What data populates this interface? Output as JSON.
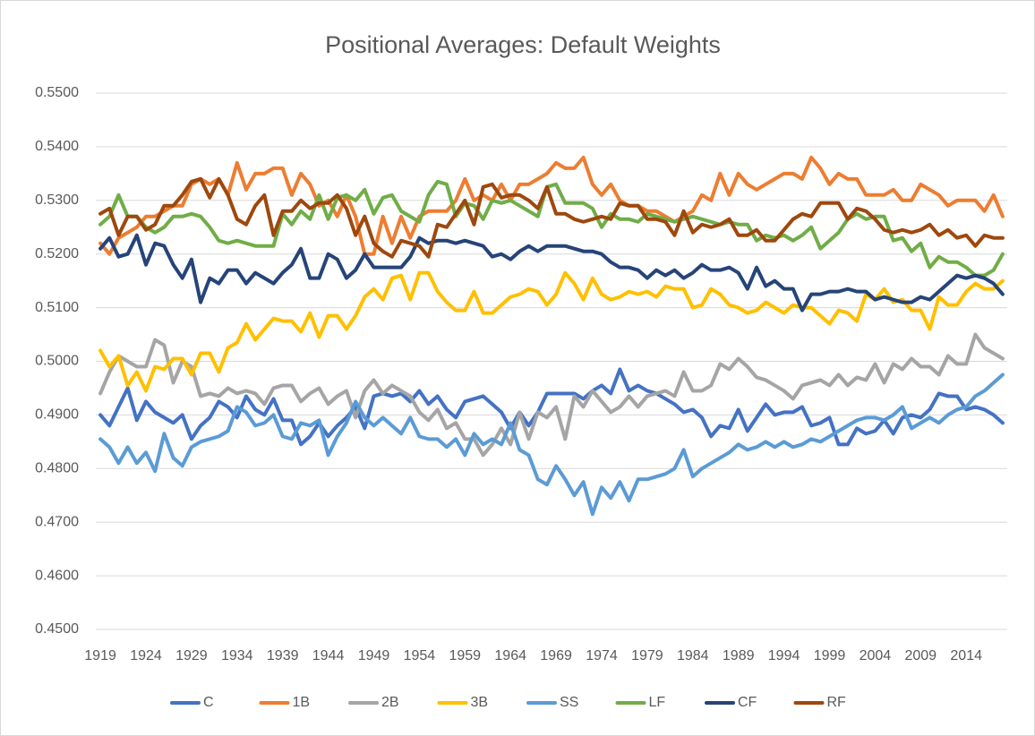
{
  "chart_data": {
    "type": "line",
    "title": "Positional Averages: Default Weights",
    "categories": [
      "1919",
      null,
      null,
      null,
      null,
      "1924",
      null,
      null,
      null,
      null,
      "1929",
      null,
      null,
      null,
      null,
      "1934",
      null,
      null,
      null,
      null,
      "1939",
      null,
      null,
      null,
      null,
      "1944",
      null,
      null,
      null,
      null,
      "1949",
      null,
      null,
      null,
      null,
      "1954",
      null,
      null,
      null,
      null,
      "1959",
      null,
      null,
      null,
      null,
      "1964",
      null,
      null,
      null,
      null,
      "1969",
      null,
      null,
      null,
      null,
      "1974",
      null,
      null,
      null,
      null,
      "1979",
      null,
      null,
      null,
      null,
      "1984",
      null,
      null,
      null,
      null,
      "1989",
      null,
      null,
      null,
      null,
      "1994",
      null,
      null,
      null,
      null,
      "1999",
      null,
      null,
      null,
      null,
      "2004",
      null,
      null,
      null,
      null,
      "2009",
      null,
      null,
      null,
      null,
      "2014",
      null,
      null,
      null,
      null
    ],
    "ylim": [
      0.45,
      0.55
    ],
    "yticks": [
      {
        "value": 0.45,
        "label": "0.4500"
      },
      {
        "value": 0.46,
        "label": "0.4600"
      },
      {
        "value": 0.47,
        "label": "0.4700"
      },
      {
        "value": 0.48,
        "label": "0.4800"
      },
      {
        "value": 0.49,
        "label": "0.4900"
      },
      {
        "value": 0.5,
        "label": "0.5000"
      },
      {
        "value": 0.51,
        "label": "0.5100"
      },
      {
        "value": 0.52,
        "label": "0.5200"
      },
      {
        "value": 0.53,
        "label": "0.5300"
      },
      {
        "value": 0.54,
        "label": "0.5400"
      },
      {
        "value": 0.55,
        "label": "0.5500"
      }
    ],
    "grid": true,
    "legend": "bottom",
    "series": [
      {
        "name": "C",
        "color": "#4472C4",
        "values": [
          0.49,
          0.488,
          0.4915,
          0.495,
          0.489,
          0.4925,
          0.4905,
          0.4895,
          0.4885,
          0.49,
          0.4855,
          0.488,
          0.4895,
          0.4925,
          0.4915,
          0.4895,
          0.4935,
          0.491,
          0.49,
          0.493,
          0.489,
          0.489,
          0.4845,
          0.486,
          0.4885,
          0.486,
          0.488,
          0.4895,
          0.4915,
          0.4875,
          0.4935,
          0.494,
          0.4935,
          0.494,
          0.4925,
          0.4945,
          0.492,
          0.4935,
          0.491,
          0.4895,
          0.4925,
          0.493,
          0.4935,
          0.492,
          0.4905,
          0.4875,
          0.4905,
          0.488,
          0.4905,
          0.494,
          0.494,
          0.494,
          0.494,
          0.493,
          0.4945,
          0.4955,
          0.494,
          0.4985,
          0.4945,
          0.4955,
          0.4945,
          0.494,
          0.493,
          0.492,
          0.4905,
          0.491,
          0.4895,
          0.486,
          0.488,
          0.4875,
          0.491,
          0.487,
          0.4895,
          0.492,
          0.49,
          0.4905,
          0.4905,
          0.4915,
          0.488,
          0.4885,
          0.4895,
          0.4845,
          0.4845,
          0.4875,
          0.4865,
          0.487,
          0.489,
          0.4865,
          0.4895,
          0.49,
          0.4895,
          0.491,
          0.494,
          0.4935,
          0.4935,
          0.491,
          0.4915,
          0.491,
          0.49,
          0.4885
        ]
      },
      {
        "name": "1B",
        "color": "#ED7D31",
        "values": [
          0.522,
          0.52,
          0.523,
          0.524,
          0.525,
          0.527,
          0.527,
          0.528,
          0.529,
          0.529,
          0.533,
          0.534,
          0.533,
          0.534,
          0.531,
          0.537,
          0.532,
          0.535,
          0.535,
          0.536,
          0.536,
          0.531,
          0.535,
          0.533,
          0.529,
          0.53,
          0.527,
          0.531,
          0.527,
          0.52,
          0.52,
          0.527,
          0.522,
          0.527,
          0.523,
          0.527,
          0.528,
          0.528,
          0.528,
          0.53,
          0.534,
          0.53,
          0.531,
          0.53,
          0.533,
          0.53,
          0.533,
          0.533,
          0.534,
          0.535,
          0.537,
          0.536,
          0.536,
          0.538,
          0.533,
          0.531,
          0.533,
          0.53,
          0.529,
          0.529,
          0.528,
          0.528,
          0.527,
          0.526,
          0.527,
          0.528,
          0.531,
          0.53,
          0.535,
          0.531,
          0.535,
          0.533,
          0.532,
          0.533,
          0.534,
          0.535,
          0.535,
          0.534,
          0.538,
          0.536,
          0.533,
          0.535,
          0.534,
          0.534,
          0.531,
          0.531,
          0.531,
          0.532,
          0.53,
          0.53,
          0.533,
          0.532,
          0.531,
          0.529,
          0.53,
          0.53,
          0.53,
          0.528,
          0.531,
          0.527
        ]
      },
      {
        "name": "2B",
        "color": "#A5A5A5",
        "values": [
          0.494,
          0.498,
          0.501,
          0.5,
          0.499,
          0.499,
          0.504,
          0.503,
          0.496,
          0.5,
          0.499,
          0.4935,
          0.494,
          0.4935,
          0.495,
          0.494,
          0.4945,
          0.494,
          0.492,
          0.495,
          0.4955,
          0.4955,
          0.4925,
          0.494,
          0.495,
          0.492,
          0.4935,
          0.4945,
          0.4895,
          0.4945,
          0.4965,
          0.494,
          0.4955,
          0.4945,
          0.4935,
          0.4905,
          0.489,
          0.491,
          0.4875,
          0.4885,
          0.4855,
          0.4855,
          0.4825,
          0.4845,
          0.4875,
          0.4845,
          0.4905,
          0.4855,
          0.4905,
          0.4895,
          0.4915,
          0.4855,
          0.4935,
          0.4915,
          0.4945,
          0.4925,
          0.4905,
          0.4915,
          0.4935,
          0.4915,
          0.4935,
          0.494,
          0.4945,
          0.4935,
          0.498,
          0.4945,
          0.4945,
          0.4955,
          0.4995,
          0.4985,
          0.5005,
          0.499,
          0.497,
          0.4965,
          0.4955,
          0.4945,
          0.493,
          0.4955,
          0.496,
          0.4965,
          0.4955,
          0.4975,
          0.4955,
          0.497,
          0.4965,
          0.4995,
          0.496,
          0.4995,
          0.4985,
          0.5005,
          0.499,
          0.499,
          0.4975,
          0.501,
          0.4995,
          0.4995,
          0.505,
          0.5025,
          0.5015,
          0.5005
        ]
      },
      {
        "name": "3B",
        "color": "#FFC000",
        "values": [
          0.502,
          0.499,
          0.501,
          0.4955,
          0.498,
          0.4945,
          0.499,
          0.4985,
          0.5005,
          0.5005,
          0.4975,
          0.5015,
          0.5015,
          0.498,
          0.5025,
          0.5035,
          0.507,
          0.504,
          0.506,
          0.508,
          0.5075,
          0.5075,
          0.5055,
          0.509,
          0.5045,
          0.5085,
          0.5085,
          0.506,
          0.5085,
          0.512,
          0.5135,
          0.5115,
          0.5155,
          0.516,
          0.5115,
          0.5165,
          0.5165,
          0.513,
          0.511,
          0.5095,
          0.5095,
          0.513,
          0.509,
          0.509,
          0.5105,
          0.512,
          0.5125,
          0.5135,
          0.513,
          0.5105,
          0.5125,
          0.5165,
          0.5145,
          0.5115,
          0.5155,
          0.5125,
          0.5115,
          0.512,
          0.513,
          0.5125,
          0.513,
          0.512,
          0.514,
          0.5135,
          0.5135,
          0.51,
          0.5105,
          0.5135,
          0.5125,
          0.5105,
          0.51,
          0.509,
          0.5095,
          0.511,
          0.51,
          0.509,
          0.5105,
          0.51,
          0.51,
          0.5085,
          0.507,
          0.5095,
          0.509,
          0.5075,
          0.5125,
          0.5115,
          0.5135,
          0.511,
          0.5115,
          0.5095,
          0.5095,
          0.506,
          0.512,
          0.5105,
          0.5105,
          0.513,
          0.5145,
          0.5135,
          0.5135,
          0.515
        ]
      },
      {
        "name": "SS",
        "color": "#5B9BD5",
        "values": [
          0.4855,
          0.484,
          0.481,
          0.484,
          0.481,
          0.483,
          0.4795,
          0.4865,
          0.482,
          0.4805,
          0.484,
          0.485,
          0.4855,
          0.486,
          0.487,
          0.4915,
          0.4905,
          0.488,
          0.4885,
          0.49,
          0.486,
          0.4855,
          0.4885,
          0.488,
          0.489,
          0.4825,
          0.486,
          0.4885,
          0.4925,
          0.4895,
          0.488,
          0.4895,
          0.488,
          0.4865,
          0.4895,
          0.486,
          0.4855,
          0.4855,
          0.484,
          0.4855,
          0.4825,
          0.4865,
          0.4845,
          0.4855,
          0.4845,
          0.4885,
          0.4835,
          0.4825,
          0.478,
          0.477,
          0.4805,
          0.478,
          0.475,
          0.4775,
          0.4715,
          0.4765,
          0.4745,
          0.4775,
          0.474,
          0.478,
          0.478,
          0.4785,
          0.479,
          0.48,
          0.4835,
          0.4785,
          0.48,
          0.481,
          0.482,
          0.483,
          0.4845,
          0.4835,
          0.484,
          0.485,
          0.484,
          0.485,
          0.484,
          0.4845,
          0.4855,
          0.485,
          0.486,
          0.487,
          0.488,
          0.489,
          0.4895,
          0.4895,
          0.489,
          0.49,
          0.4915,
          0.4875,
          0.4885,
          0.4895,
          0.4885,
          0.49,
          0.491,
          0.4915,
          0.4935,
          0.4945,
          0.496,
          0.4975
        ]
      },
      {
        "name": "LF",
        "color": "#70AD47",
        "values": [
          0.5255,
          0.527,
          0.531,
          0.527,
          0.527,
          0.525,
          0.524,
          0.525,
          0.527,
          0.527,
          0.5275,
          0.527,
          0.525,
          0.5225,
          0.522,
          0.5225,
          0.522,
          0.5215,
          0.5215,
          0.5215,
          0.5275,
          0.5255,
          0.528,
          0.5265,
          0.531,
          0.5265,
          0.5305,
          0.531,
          0.53,
          0.532,
          0.5275,
          0.5305,
          0.531,
          0.528,
          0.527,
          0.526,
          0.531,
          0.5335,
          0.533,
          0.527,
          0.5295,
          0.529,
          0.5265,
          0.53,
          0.5295,
          0.53,
          0.529,
          0.528,
          0.527,
          0.5325,
          0.533,
          0.5295,
          0.5295,
          0.5295,
          0.5285,
          0.525,
          0.5275,
          0.5265,
          0.5265,
          0.526,
          0.5275,
          0.527,
          0.5265,
          0.526,
          0.5265,
          0.527,
          0.5265,
          0.526,
          0.5255,
          0.526,
          0.5255,
          0.5255,
          0.5225,
          0.5235,
          0.523,
          0.5235,
          0.5225,
          0.5235,
          0.525,
          0.521,
          0.5225,
          0.524,
          0.5265,
          0.5275,
          0.5265,
          0.527,
          0.527,
          0.5225,
          0.523,
          0.5205,
          0.522,
          0.5175,
          0.5195,
          0.5185,
          0.5185,
          0.5175,
          0.516,
          0.516,
          0.517,
          0.52
        ]
      },
      {
        "name": "CF",
        "color": "#264478",
        "values": [
          0.521,
          0.523,
          0.5195,
          0.52,
          0.5235,
          0.518,
          0.522,
          0.5215,
          0.518,
          0.5155,
          0.519,
          0.511,
          0.5155,
          0.5145,
          0.517,
          0.517,
          0.5145,
          0.5165,
          0.5155,
          0.5145,
          0.5165,
          0.518,
          0.521,
          0.5155,
          0.5155,
          0.52,
          0.519,
          0.5155,
          0.517,
          0.52,
          0.5175,
          0.5175,
          0.5175,
          0.5175,
          0.5195,
          0.523,
          0.522,
          0.5225,
          0.5225,
          0.522,
          0.5225,
          0.522,
          0.5215,
          0.5195,
          0.52,
          0.519,
          0.5205,
          0.5215,
          0.5205,
          0.5215,
          0.5215,
          0.5215,
          0.521,
          0.5205,
          0.5205,
          0.52,
          0.5185,
          0.5175,
          0.5175,
          0.517,
          0.5155,
          0.517,
          0.516,
          0.517,
          0.5155,
          0.5165,
          0.518,
          0.517,
          0.517,
          0.5175,
          0.5165,
          0.5135,
          0.5175,
          0.514,
          0.515,
          0.5135,
          0.5135,
          0.5095,
          0.5125,
          0.5125,
          0.513,
          0.513,
          0.5135,
          0.513,
          0.513,
          0.5115,
          0.512,
          0.5115,
          0.511,
          0.511,
          0.512,
          0.5115,
          0.513,
          0.5145,
          0.516,
          0.5155,
          0.516,
          0.5155,
          0.5145,
          0.5125
        ]
      },
      {
        "name": "RF",
        "color": "#9E480E",
        "values": [
          0.5275,
          0.5285,
          0.5235,
          0.527,
          0.527,
          0.5245,
          0.5255,
          0.529,
          0.529,
          0.531,
          0.5335,
          0.534,
          0.5305,
          0.534,
          0.531,
          0.5265,
          0.5255,
          0.529,
          0.531,
          0.5235,
          0.528,
          0.528,
          0.53,
          0.5285,
          0.5295,
          0.5295,
          0.531,
          0.5285,
          0.5235,
          0.527,
          0.522,
          0.5205,
          0.5195,
          0.5225,
          0.522,
          0.5215,
          0.5195,
          0.5255,
          0.525,
          0.5275,
          0.53,
          0.5255,
          0.5325,
          0.533,
          0.5305,
          0.531,
          0.531,
          0.53,
          0.5285,
          0.5325,
          0.5275,
          0.5275,
          0.5265,
          0.526,
          0.5265,
          0.527,
          0.5265,
          0.5295,
          0.529,
          0.529,
          0.5265,
          0.5265,
          0.526,
          0.5235,
          0.528,
          0.524,
          0.5255,
          0.525,
          0.5255,
          0.5265,
          0.5235,
          0.5235,
          0.5245,
          0.5225,
          0.5225,
          0.5245,
          0.5265,
          0.5275,
          0.527,
          0.5295,
          0.5295,
          0.5295,
          0.5265,
          0.5285,
          0.528,
          0.5265,
          0.5245,
          0.524,
          0.5245,
          0.524,
          0.5245,
          0.5255,
          0.5235,
          0.5245,
          0.523,
          0.5235,
          0.5215,
          0.5235,
          0.523,
          0.523
        ]
      }
    ]
  }
}
